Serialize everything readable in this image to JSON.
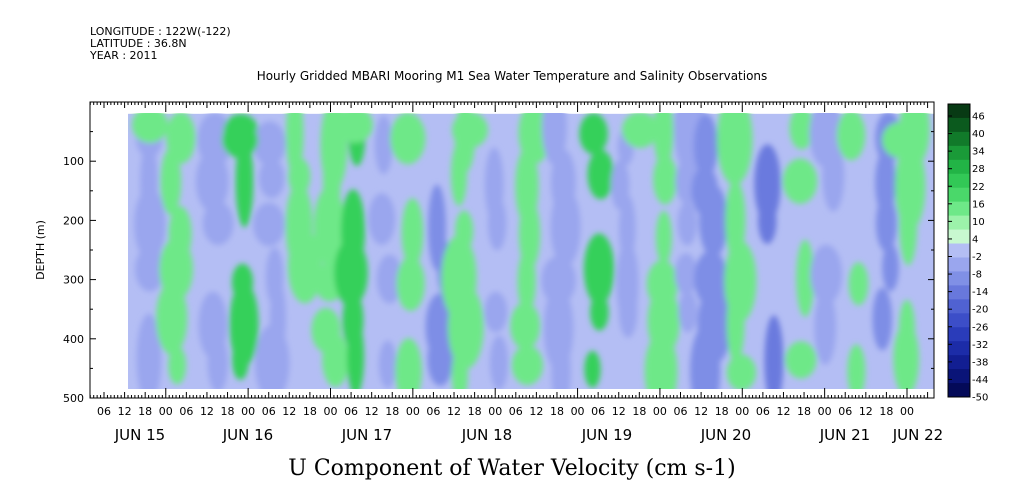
{
  "header": {
    "longitude": "LONGITUDE : 122W(-122)",
    "latitude": "LATITUDE : 36.8N",
    "year": "YEAR : 2011"
  },
  "chart_data": {
    "type": "heatmap",
    "title": "Hourly Gridded MBARI Mooring M1 Sea Water Temperature and Salinity Observations",
    "xlabel": "U Component of Water Velocity (cm s-1)",
    "ylabel": "DEPTH (m)",
    "y_range": [
      0,
      500
    ],
    "y_ticks": [
      100,
      200,
      300,
      400,
      500
    ],
    "y_tick_labels": [
      "100",
      "200",
      "300",
      "400",
      "500"
    ],
    "y_inverted": true,
    "x_hour_labels": [
      "06",
      "12",
      "18",
      "00",
      "06",
      "12",
      "18",
      "00",
      "06",
      "12",
      "18",
      "00",
      "06",
      "12",
      "18",
      "00",
      "06",
      "12",
      "18",
      "00",
      "06",
      "12",
      "18",
      "00",
      "06",
      "12",
      "18",
      "00",
      "06",
      "12",
      "18",
      "00",
      "06",
      "12",
      "18",
      "00",
      "06",
      "12",
      "18",
      "00"
    ],
    "x_day_labels": [
      "JUN 15",
      "JUN 16",
      "JUN 17",
      "JUN 18",
      "JUN 19",
      "JUN 20",
      "JUN 21",
      "JUN 22"
    ],
    "colorbar_labels": [
      "46",
      "40",
      "34",
      "28",
      "22",
      "16",
      "10",
      "4",
      "-2",
      "-8",
      "-14",
      "-20",
      "-26",
      "-32",
      "-38",
      "-44",
      "-50"
    ],
    "colorbar_colors": [
      "#083a14",
      "#0b5a1e",
      "#117a2a",
      "#1a9a38",
      "#22b446",
      "#32c856",
      "#4ad86a",
      "#6ee888",
      "#9cf2aa",
      "#c8f8d0",
      "#b4bef4",
      "#9aa6ee",
      "#8090e6",
      "#6878dc",
      "#5062d2",
      "#3c4ec8",
      "#2a3cba",
      "#1c2ca8",
      "#121e92",
      "#0a1478",
      "#040a58"
    ],
    "field_colors": {
      "strong_positive": "#36d05a",
      "positive": "#6ee888",
      "weak_positive": "#a6eeb0",
      "weak_negative": "#b4bef4",
      "negative": "#9aa6ee",
      "strong_negative": "#7e8ee6",
      "very_negative": "#6a7ade"
    },
    "data_depth_range": [
      20,
      485
    ],
    "grid": false,
    "colorbar_position": "right"
  }
}
